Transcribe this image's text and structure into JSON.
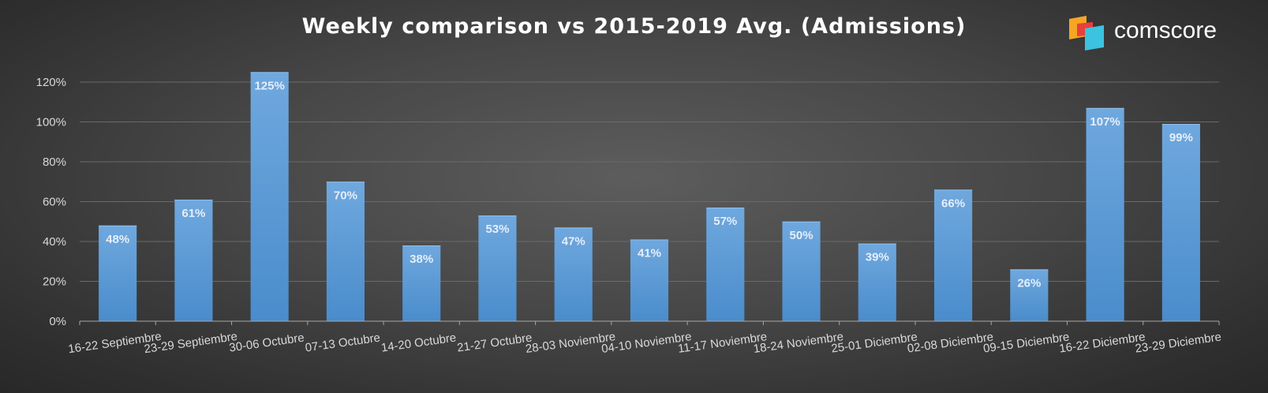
{
  "chart_data": {
    "type": "bar",
    "title": "Weekly comparison vs 2015-2019 Avg. (Admissions)",
    "xlabel": "",
    "ylabel": "",
    "ylim": [
      0,
      1.2
    ],
    "yticks": [
      "0%",
      "20%",
      "40%",
      "60%",
      "80%",
      "100%",
      "120%"
    ],
    "grid": true,
    "legend": "none",
    "bar_color": "#5b9bd5",
    "categories": [
      "16-22 Septiembre",
      "23-29 Septiembre",
      "30-06 Octubre",
      "07-13 Octubre",
      "14-20 Octubre",
      "21-27 Octubre",
      "28-03 Noviembre",
      "04-10 Noviembre",
      "11-17 Noviembre",
      "18-24 Noviembre",
      "25-01 Diciembre",
      "02-08 Diciembre",
      "09-15 Diciembre",
      "16-22 Diciembre",
      "23-29 Diciembre"
    ],
    "values": [
      0.48,
      0.61,
      1.25,
      0.7,
      0.38,
      0.53,
      0.47,
      0.41,
      0.57,
      0.5,
      0.39,
      0.66,
      0.26,
      1.07,
      0.99
    ],
    "data_labels": [
      "48%",
      "61%",
      "125%",
      "70%",
      "38%",
      "53%",
      "47%",
      "41%",
      "57%",
      "50%",
      "39%",
      "66%",
      "26%",
      "107%",
      "99%"
    ]
  },
  "logo": {
    "text": "comscore",
    "colors": [
      "#f5a623",
      "#e8403a",
      "#3cc3e0"
    ]
  }
}
